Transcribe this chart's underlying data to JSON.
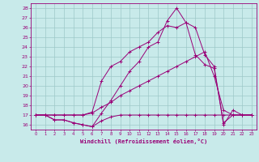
{
  "xlabel": "Windchill (Refroidissement éolien,°C)",
  "bg_color": "#c8eaea",
  "grid_color": "#9dc8c8",
  "line_color": "#990077",
  "xlim": [
    -0.5,
    23.5
  ],
  "ylim": [
    15.5,
    28.5
  ],
  "yticks": [
    16,
    17,
    18,
    19,
    20,
    21,
    22,
    23,
    24,
    25,
    26,
    27,
    28
  ],
  "xticks": [
    0,
    1,
    2,
    3,
    4,
    5,
    6,
    7,
    8,
    9,
    10,
    11,
    12,
    13,
    14,
    15,
    16,
    17,
    18,
    19,
    20,
    21,
    22,
    23
  ],
  "series1": {
    "x": [
      0,
      1,
      2,
      3,
      4,
      5,
      6,
      7,
      8,
      9,
      10,
      11,
      12,
      13,
      14,
      15,
      16,
      17,
      18,
      19,
      20,
      21,
      22,
      23
    ],
    "y": [
      17,
      17,
      16.5,
      16.5,
      16.2,
      16.0,
      15.8,
      16.4,
      16.8,
      17,
      17,
      17,
      17,
      17,
      17,
      17,
      17,
      17,
      17,
      17,
      17,
      17,
      17,
      17
    ]
  },
  "series2": {
    "x": [
      0,
      1,
      2,
      3,
      4,
      5,
      6,
      7,
      8,
      9,
      10,
      11,
      12,
      13,
      14,
      15,
      16,
      17,
      18,
      19,
      20,
      21,
      22,
      23
    ],
    "y": [
      17,
      17,
      17,
      17,
      17,
      17,
      17.2,
      17.8,
      18.3,
      19,
      19.5,
      20,
      20.5,
      21,
      21.5,
      22,
      22.5,
      23,
      23.5,
      21,
      17.5,
      17,
      17,
      17
    ]
  },
  "series3": {
    "x": [
      0,
      1,
      2,
      3,
      4,
      5,
      6,
      7,
      8,
      9,
      10,
      11,
      12,
      13,
      14,
      15,
      16,
      17,
      18,
      19,
      20,
      21,
      22,
      23
    ],
    "y": [
      17,
      17,
      17,
      17,
      17,
      17,
      17.3,
      20.5,
      22,
      22.5,
      23.5,
      24,
      24.5,
      25.5,
      26.2,
      26.0,
      26.5,
      23.2,
      22.2,
      21.8,
      16.2,
      17,
      17,
      17
    ]
  },
  "series4": {
    "x": [
      0,
      1,
      2,
      3,
      4,
      5,
      6,
      7,
      8,
      9,
      10,
      11,
      12,
      13,
      14,
      15,
      16,
      17,
      18,
      19,
      20,
      21,
      22,
      23
    ],
    "y": [
      17,
      17,
      16.5,
      16.5,
      16.2,
      16.0,
      15.8,
      17.2,
      18.5,
      20,
      21.5,
      22.5,
      24,
      24.5,
      26.7,
      28,
      26.5,
      26,
      23.2,
      22,
      16.0,
      17.5,
      17,
      17
    ]
  }
}
